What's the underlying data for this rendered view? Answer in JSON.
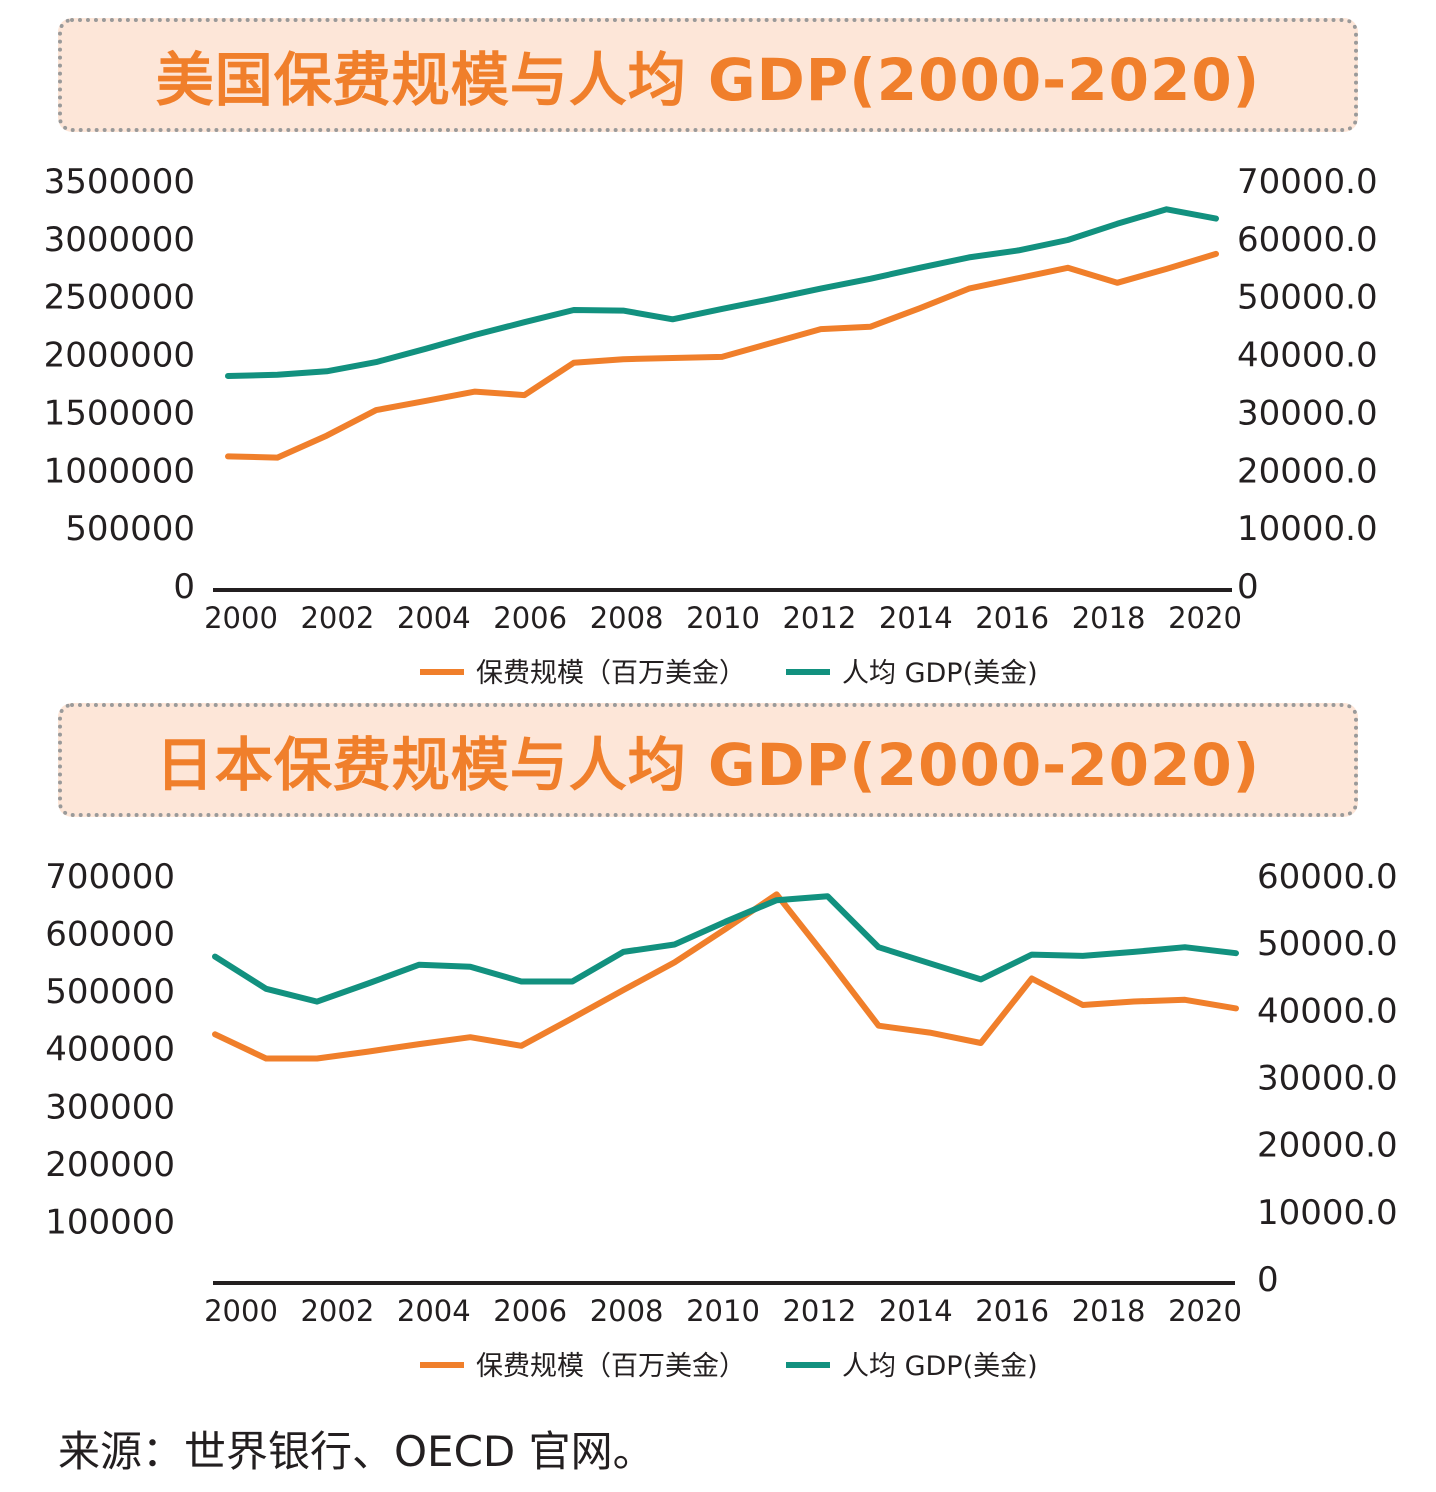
{
  "colors": {
    "premium": "#f07f2b",
    "gdp": "#12917f",
    "axis": "#231f20",
    "title": "#f07f2b",
    "title_bg": "#fde6d8"
  },
  "chart_data": [
    {
      "type": "line",
      "title": "美国保费规模与人均 GDP(2000-2020)",
      "x": [
        2000,
        2001,
        2002,
        2003,
        2004,
        2005,
        2006,
        2007,
        2008,
        2009,
        2010,
        2011,
        2012,
        2013,
        2014,
        2015,
        2016,
        2017,
        2018,
        2019,
        2020
      ],
      "x_tick_labels": [
        "2000",
        "2002",
        "2004",
        "2006",
        "2008",
        "2010",
        "2012",
        "2014",
        "2016",
        "2018",
        "2020"
      ],
      "left_axis": {
        "ylim": [
          0,
          3500000
        ],
        "ticks": [
          "0",
          "500000",
          "1000000",
          "1500000",
          "2000000",
          "2500000",
          "3000000",
          "3500000"
        ]
      },
      "right_axis": {
        "ylim": [
          0,
          70000
        ],
        "ticks": [
          "0",
          "10000.0",
          "20000.0",
          "30000.0",
          "40000.0",
          "50000.0",
          "60000.0",
          "70000.0"
        ]
      },
      "legend_position": "bottom",
      "series": [
        {
          "name": "保费规模（百万美金）",
          "axis": "left",
          "values": [
            1120000,
            1110000,
            1300000,
            1520000,
            1600000,
            1680000,
            1650000,
            1930000,
            1960000,
            1970000,
            1980000,
            2100000,
            2220000,
            2240000,
            2400000,
            2570000,
            2660000,
            2750000,
            2620000,
            2740000,
            2870000
          ]
        },
        {
          "name": "人均 GDP(美金)",
          "axis": "right",
          "values": [
            36300,
            36500,
            37100,
            38700,
            41000,
            43400,
            45600,
            47700,
            47600,
            46100,
            47900,
            49600,
            51400,
            53100,
            55000,
            56800,
            58000,
            59800,
            62600,
            65100,
            63500
          ]
        }
      ]
    },
    {
      "type": "line",
      "title": "日本保费规模与人均 GDP(2000-2020)",
      "x": [
        2000,
        2001,
        2002,
        2003,
        2004,
        2005,
        2006,
        2007,
        2008,
        2009,
        2010,
        2011,
        2012,
        2013,
        2014,
        2015,
        2016,
        2017,
        2018,
        2019,
        2020
      ],
      "x_tick_labels": [
        "2000",
        "2002",
        "2004",
        "2006",
        "2008",
        "2010",
        "2012",
        "2014",
        "2016",
        "2018",
        "2020"
      ],
      "left_axis": {
        "ylim": [
          0,
          700000
        ],
        "ticks": [
          "100000",
          "200000",
          "300000",
          "400000",
          "500000",
          "600000",
          "700000"
        ]
      },
      "right_axis": {
        "ylim": [
          0,
          60000
        ],
        "ticks": [
          "0",
          "10000.0",
          "20000.0",
          "30000.0",
          "40000.0",
          "50000.0",
          "60000.0"
        ]
      },
      "legend_position": "bottom",
      "series": [
        {
          "name": "保费规模（百万美金）",
          "axis": "left",
          "values": [
            425000,
            383000,
            383000,
            395000,
            408000,
            420000,
            405000,
            453000,
            502000,
            550000,
            608000,
            668000,
            556000,
            440000,
            428000,
            410000,
            522000,
            476000,
            482000,
            485000,
            470000
          ]
        },
        {
          "name": "人均 GDP(美金)",
          "axis": "right",
          "values": [
            48000,
            43200,
            41300,
            44000,
            46800,
            46500,
            44300,
            44300,
            48700,
            49800,
            53200,
            56400,
            57000,
            49400,
            47000,
            44600,
            48300,
            48100,
            48700,
            49400,
            48500
          ]
        }
      ]
    }
  ],
  "source_text": "来源：世界银行、OECD 官网。"
}
